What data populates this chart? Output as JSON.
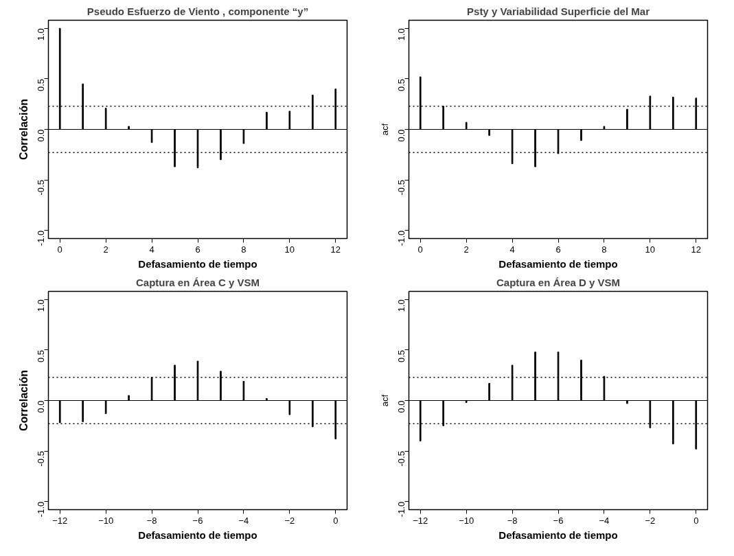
{
  "chart_data": [
    {
      "type": "bar",
      "title": "Pseudo Esfuerzo de Viento , componente “y”",
      "xlabel": "Defasamiento de tiempo",
      "ylabel": "Correlación",
      "x": [
        0,
        1,
        2,
        3,
        4,
        5,
        6,
        7,
        8,
        9,
        10,
        11,
        12
      ],
      "values": [
        1.0,
        0.45,
        0.21,
        0.03,
        -0.13,
        -0.37,
        -0.38,
        -0.3,
        -0.14,
        0.17,
        0.18,
        0.34,
        0.4
      ],
      "color": "#000000",
      "xlim": [
        -0.5,
        12.5
      ],
      "xticks": [
        0,
        2,
        4,
        6,
        8,
        10,
        12
      ],
      "ylim": [
        -1.08,
        1.08
      ],
      "yticks": [
        {
          "value": -1,
          "label": "-1.0"
        },
        {
          "value": -0.5,
          "label": "-0.5"
        },
        {
          "value": 0,
          "label": "0.0"
        },
        {
          "value": 0.5,
          "label": "0.5"
        },
        {
          "value": 1,
          "label": "1.0"
        }
      ],
      "grid": false,
      "ref_lines": [
        {
          "axis": "y",
          "value": 0,
          "line_style": "solid"
        },
        {
          "axis": "y",
          "value": 0.23,
          "line_style": "dotted"
        },
        {
          "axis": "y",
          "value": -0.23,
          "line_style": "dotted"
        }
      ]
    },
    {
      "type": "bar",
      "title": "Psty y Variabilidad Superficie del Mar",
      "xlabel": "Defasamiento de tiempo",
      "ylabel": "acf",
      "x": [
        0,
        1,
        2,
        3,
        4,
        5,
        6,
        7,
        8,
        9,
        10,
        11,
        12
      ],
      "values": [
        0.52,
        0.23,
        0.07,
        -0.06,
        -0.34,
        -0.37,
        -0.24,
        -0.11,
        0.03,
        0.2,
        0.33,
        0.32,
        0.31
      ],
      "color": "#000000",
      "xlim": [
        -0.5,
        12.5
      ],
      "xticks": [
        0,
        2,
        4,
        6,
        8,
        10,
        12
      ],
      "ylim": [
        -1.08,
        1.08
      ],
      "yticks": [
        {
          "value": -1,
          "label": "-1.0"
        },
        {
          "value": -0.5,
          "label": "-0.5"
        },
        {
          "value": 0,
          "label": "0.0"
        },
        {
          "value": 0.5,
          "label": "0.5"
        },
        {
          "value": 1,
          "label": "1.0"
        }
      ],
      "grid": false,
      "ref_lines": [
        {
          "axis": "y",
          "value": 0,
          "line_style": "solid"
        },
        {
          "axis": "y",
          "value": 0.23,
          "line_style": "dotted"
        },
        {
          "axis": "y",
          "value": -0.23,
          "line_style": "dotted"
        }
      ]
    },
    {
      "type": "bar",
      "title": "Captura en Área C y VSM",
      "xlabel": "Defasamiento de tiempo",
      "ylabel": "Correlación",
      "x": [
        -12,
        -11,
        -10,
        -9,
        -8,
        -7,
        -6,
        -5,
        -4,
        -3,
        -2,
        -1,
        0
      ],
      "values": [
        -0.22,
        -0.21,
        -0.13,
        0.05,
        0.23,
        0.35,
        0.39,
        0.29,
        0.19,
        0.02,
        -0.14,
        -0.26,
        -0.38
      ],
      "color": "#000000",
      "xlim": [
        -12.5,
        0.5
      ],
      "xticks": [
        -12,
        -10,
        -8,
        -6,
        -4,
        -2,
        0
      ],
      "ylim": [
        -1.08,
        1.08
      ],
      "yticks": [
        {
          "value": -1,
          "label": "-1.0"
        },
        {
          "value": -0.5,
          "label": "-0.5"
        },
        {
          "value": 0,
          "label": "0.0"
        },
        {
          "value": 0.5,
          "label": "0.5"
        },
        {
          "value": 1,
          "label": "1.0"
        }
      ],
      "grid": false,
      "ref_lines": [
        {
          "axis": "y",
          "value": 0,
          "line_style": "solid"
        },
        {
          "axis": "y",
          "value": 0.23,
          "line_style": "dotted"
        },
        {
          "axis": "y",
          "value": -0.23,
          "line_style": "dotted"
        }
      ]
    },
    {
      "type": "bar",
      "title": "Captura en Área D y VSM",
      "xlabel": "Defasamiento de tiempo",
      "ylabel": "acf",
      "x": [
        -12,
        -11,
        -10,
        -9,
        -8,
        -7,
        -6,
        -5,
        -4,
        -3,
        -2,
        -1,
        0
      ],
      "values": [
        -0.4,
        -0.25,
        -0.02,
        0.17,
        0.35,
        0.48,
        0.48,
        0.4,
        0.24,
        -0.03,
        -0.27,
        -0.43,
        -0.48
      ],
      "color": "#000000",
      "xlim": [
        -12.5,
        0.5
      ],
      "xticks": [
        -12,
        -10,
        -8,
        -6,
        -4,
        -2,
        0
      ],
      "ylim": [
        -1.08,
        1.08
      ],
      "yticks": [
        {
          "value": -1,
          "label": "-1.0"
        },
        {
          "value": -0.5,
          "label": "-0.5"
        },
        {
          "value": 0,
          "label": "0.0"
        },
        {
          "value": 0.5,
          "label": "0.5"
        },
        {
          "value": 1,
          "label": "1.0"
        }
      ],
      "grid": false,
      "ref_lines": [
        {
          "axis": "y",
          "value": 0,
          "line_style": "solid"
        },
        {
          "axis": "y",
          "value": 0.23,
          "line_style": "dotted"
        },
        {
          "axis": "y",
          "value": -0.23,
          "line_style": "dotted"
        }
      ]
    }
  ]
}
